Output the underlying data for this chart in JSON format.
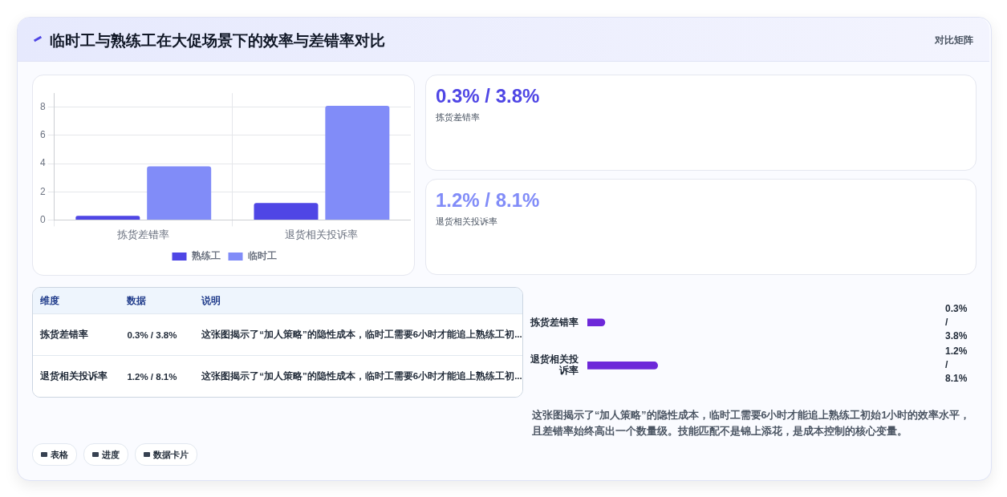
{
  "chart_data": [
    {
      "type": "other",
      "annotations": [
        "临时工与熟练工在大促场景下的效率与差错率对比",
        "对比矩阵"
      ]
    },
    {
      "type": "bar",
      "categories": [
        "拣货差错率",
        "退货相关投诉率"
      ],
      "series": [
        {
          "name": "熟练工",
          "color": "#4f46e5",
          "values": [
            0.3,
            1.2
          ]
        },
        {
          "name": "临时工",
          "color": "#818cf8",
          "values": [
            3.8,
            8.1
          ]
        }
      ],
      "ylim": [
        0,
        9
      ],
      "yticks": [
        0,
        2,
        4,
        6,
        8
      ],
      "grid": true,
      "legend": "bottom"
    },
    {
      "type": "other",
      "annotations": [
        "0.3% / 3.8%",
        "拣货差错率",
        "1.2% / 8.1%",
        "退货相关投诉率"
      ]
    },
    {
      "type": "other",
      "annotations": [
        "维度",
        "数据",
        "说明",
        "拣货差错率",
        "0.3% / 3.8%",
        "这张图揭示了“加人策略”的隐性成本，临时工需要6小时才能追上熟练工初...",
        "退货相关投诉率",
        "1.2% / 8.1%",
        "这张图揭示了“加人策略”的隐性成本，临时工需要6小时才能追上熟练工初..."
      ]
    },
    {
      "type": "bar",
      "orientation": "horizontal",
      "categories": [
        "拣货差错率",
        "退货相关投诉率"
      ],
      "values": [
        0.3,
        1.2
      ],
      "value_labels": [
        "0.3% / 3.8%",
        "1.2% / 8.1%"
      ],
      "color": "#6d28d9"
    },
    {
      "type": "other",
      "annotations": [
        "这张图揭示了“加人策略”的隐性成本，临时工需要6小时才能追上熟练工初始1小时的效率水平，且差错率始终高出一个数量级。技能匹配不是锦上添花，是成本控制的核心变量。",
        "表格",
        "进度",
        "数据卡片"
      ]
    }
  ]
}
